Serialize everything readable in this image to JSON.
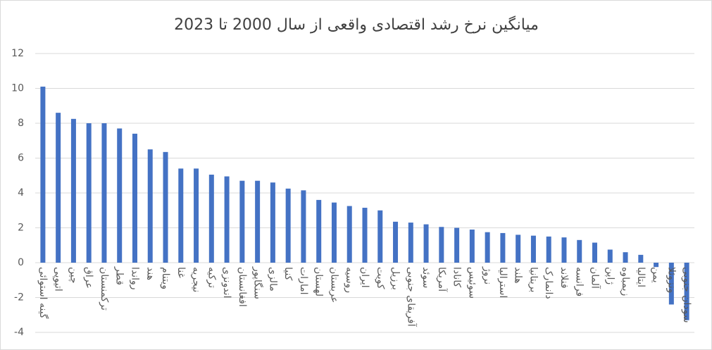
{
  "chart_data": {
    "type": "bar",
    "title": "میانگین نرخ رشد اقتصادی واقعی از سال 2000 تا 2023",
    "categories": [
      "گینه استوائی",
      "اتیوپی",
      "چین",
      "عراق",
      "ترکمنستان",
      "قطر",
      "رواندا",
      "هند",
      "ویتنام",
      "غنا",
      "نیجریه",
      "ترکیه",
      "اندونزی",
      "افغانستان",
      "سنگاپور",
      "مالزی",
      "کنیا",
      "امارات",
      "لهستان",
      "عربستان",
      "روسیه",
      "ایران",
      "کویت",
      "برزیل",
      "آفریقای جنوبی",
      "سوئد",
      "آمریکا",
      "کانادا",
      "سوئیس",
      "نروژ",
      "استرالیا",
      "هلند",
      "بریتانیا",
      "دانمارک",
      "فنلاند",
      "فرانسه",
      "آلمان",
      "ژاپن",
      "زیمباوه",
      "ایتالیا",
      "یمن",
      "ونزوئلا",
      "سودان جنوبی"
    ],
    "values": [
      10.1,
      8.6,
      8.25,
      8.0,
      8.0,
      7.7,
      7.4,
      6.5,
      6.35,
      5.4,
      5.4,
      5.05,
      4.95,
      4.7,
      4.7,
      4.6,
      4.25,
      4.15,
      3.6,
      3.45,
      3.25,
      3.15,
      3.0,
      2.35,
      2.3,
      2.2,
      2.05,
      2.0,
      1.9,
      1.75,
      1.7,
      1.6,
      1.55,
      1.5,
      1.45,
      1.3,
      1.15,
      0.75,
      0.6,
      0.45,
      -0.25,
      -2.4,
      -3.3
    ],
    "color": "#4472c4",
    "ylim": [
      -4,
      12
    ],
    "yticks": [
      -4,
      -2,
      0,
      2,
      4,
      6,
      8,
      10,
      12
    ],
    "grid": true
  }
}
